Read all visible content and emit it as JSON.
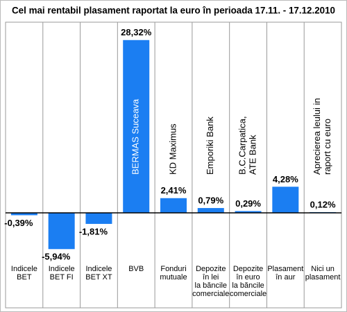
{
  "chart_data": {
    "type": "bar",
    "title": "Cel mai rentabil plasament raportat la euro în perioada 17.11. - 17.12.2010",
    "categories": [
      [
        "Indicele",
        "BET"
      ],
      [
        "Indicele",
        "BET FI"
      ],
      [
        "Indicele",
        "BET XT"
      ],
      [
        "BVB"
      ],
      [
        "Fonduri",
        "mutuale"
      ],
      [
        "Depozite",
        "în lei",
        "la băncile",
        "comerciale"
      ],
      [
        "Depozite",
        "în euro",
        "la băncile",
        "comerciale"
      ],
      [
        "Plasament",
        "în aur"
      ],
      [
        "Nici un",
        "plasament"
      ]
    ],
    "bar_labels": [
      null,
      null,
      null,
      [
        "BERMAS Suceava"
      ],
      [
        "KD Maximus"
      ],
      [
        "Emporiki Bank"
      ],
      [
        "B.C.Carpatica,",
        "ATE  Bank"
      ],
      null,
      [
        "Aprecierea leului in",
        "raport cu euro"
      ]
    ],
    "values": [
      -0.39,
      -5.94,
      -1.81,
      28.32,
      2.41,
      0.79,
      0.29,
      4.28,
      0.12
    ],
    "value_labels": [
      "-0,39%",
      "-5,94%",
      "-1,81%",
      "28,32%",
      "2,41%",
      "0,79%",
      "0,29%",
      "4,28%",
      "0,12%"
    ],
    "color": "#1b7ef2"
  }
}
